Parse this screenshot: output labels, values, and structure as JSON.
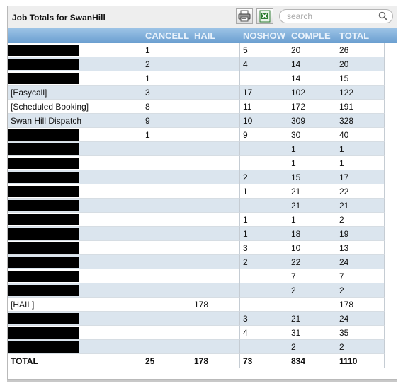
{
  "panel": {
    "title": "Job Totals for SwanHill",
    "toolbar": {
      "print_icon": "printer-icon",
      "excel_icon": "excel-icon"
    },
    "search": {
      "placeholder": "search",
      "value": ""
    }
  },
  "columns": [
    "",
    "CANCELLED",
    "HAIL",
    "NOSHOW",
    "COMPLETED",
    "TOTAL"
  ],
  "column_display": [
    "",
    "CANCELL",
    "HAIL",
    "NOSHOW",
    "COMPLE",
    "TOTAL"
  ],
  "rows": [
    {
      "name": "",
      "redacted": true,
      "cancelled": "1",
      "hail": "",
      "noshow": "5",
      "completed": "20",
      "total": "26"
    },
    {
      "name": "",
      "redacted": true,
      "cancelled": "2",
      "hail": "",
      "noshow": "4",
      "completed": "14",
      "total": "20"
    },
    {
      "name": "",
      "redacted": true,
      "cancelled": "1",
      "hail": "",
      "noshow": "",
      "completed": "14",
      "total": "15"
    },
    {
      "name": "[Easycall]",
      "redacted": false,
      "cancelled": "3",
      "hail": "",
      "noshow": "17",
      "completed": "102",
      "total": "122"
    },
    {
      "name": "[Scheduled Booking]",
      "redacted": false,
      "cancelled": "8",
      "hail": "",
      "noshow": "11",
      "completed": "172",
      "total": "191"
    },
    {
      "name": "Swan Hill Dispatch",
      "redacted": false,
      "cancelled": "9",
      "hail": "",
      "noshow": "10",
      "completed": "309",
      "total": "328"
    },
    {
      "name": "",
      "redacted": true,
      "cancelled": "1",
      "hail": "",
      "noshow": "9",
      "completed": "30",
      "total": "40"
    },
    {
      "name": "",
      "redacted": true,
      "cancelled": "",
      "hail": "",
      "noshow": "",
      "completed": "1",
      "total": "1"
    },
    {
      "name": "",
      "redacted": true,
      "cancelled": "",
      "hail": "",
      "noshow": "",
      "completed": "1",
      "total": "1"
    },
    {
      "name": "",
      "redacted": true,
      "cancelled": "",
      "hail": "",
      "noshow": "2",
      "completed": "15",
      "total": "17"
    },
    {
      "name": "",
      "redacted": true,
      "cancelled": "",
      "hail": "",
      "noshow": "1",
      "completed": "21",
      "total": "22"
    },
    {
      "name": "",
      "redacted": true,
      "cancelled": "",
      "hail": "",
      "noshow": "",
      "completed": "21",
      "total": "21"
    },
    {
      "name": "",
      "redacted": true,
      "cancelled": "",
      "hail": "",
      "noshow": "1",
      "completed": "1",
      "total": "2"
    },
    {
      "name": "",
      "redacted": true,
      "cancelled": "",
      "hail": "",
      "noshow": "1",
      "completed": "18",
      "total": "19"
    },
    {
      "name": "",
      "redacted": true,
      "cancelled": "",
      "hail": "",
      "noshow": "3",
      "completed": "10",
      "total": "13"
    },
    {
      "name": "",
      "redacted": true,
      "cancelled": "",
      "hail": "",
      "noshow": "2",
      "completed": "22",
      "total": "24"
    },
    {
      "name": "",
      "redacted": true,
      "cancelled": "",
      "hail": "",
      "noshow": "",
      "completed": "7",
      "total": "7"
    },
    {
      "name": "",
      "redacted": true,
      "cancelled": "",
      "hail": "",
      "noshow": "",
      "completed": "2",
      "total": "2"
    },
    {
      "name": "[HAIL]",
      "redacted": false,
      "cancelled": "",
      "hail": "178",
      "noshow": "",
      "completed": "",
      "total": "178"
    },
    {
      "name": "",
      "redacted": true,
      "cancelled": "",
      "hail": "",
      "noshow": "3",
      "completed": "21",
      "total": "24"
    },
    {
      "name": "",
      "redacted": true,
      "cancelled": "",
      "hail": "",
      "noshow": "4",
      "completed": "31",
      "total": "35"
    },
    {
      "name": "",
      "redacted": true,
      "cancelled": "",
      "hail": "",
      "noshow": "",
      "completed": "2",
      "total": "2"
    }
  ],
  "totals": {
    "name": "TOTAL",
    "cancelled": "25",
    "hail": "178",
    "noshow": "73",
    "completed": "834",
    "total": "1110"
  },
  "colors": {
    "header_top": "#9cc3e6",
    "header_bottom": "#6b9fd0",
    "row_alt": "#dbe5ee",
    "redaction": "#000000"
  }
}
